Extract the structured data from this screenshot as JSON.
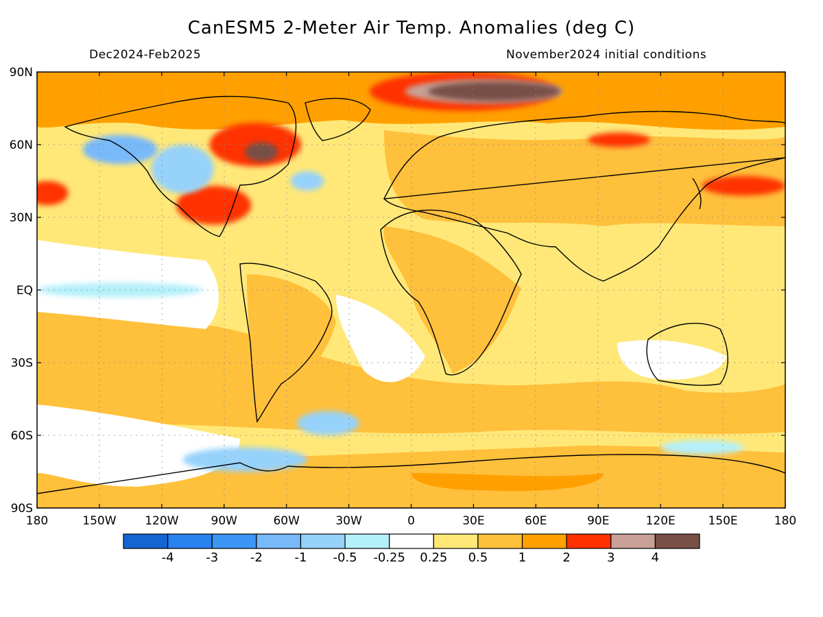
{
  "title": "CanESM5 2-Meter Air Temp. Anomalies (deg C)",
  "subtitle_left": "Dec2024-Feb2025",
  "subtitle_right": "November2024 initial conditions",
  "lat_labels": [
    "90N",
    "60N",
    "30N",
    "EQ",
    "30S",
    "60S",
    "90S"
  ],
  "lon_labels": [
    "180",
    "150W",
    "120W",
    "90W",
    "60W",
    "30W",
    "0",
    "30E",
    "60E",
    "90E",
    "120E",
    "150E",
    "180"
  ],
  "legend": {
    "colors": [
      "#1464d2",
      "#2882f0",
      "#3c96f5",
      "#78b9fa",
      "#96d2fa",
      "#b4f0fa",
      "#ffffff",
      "#ffe878",
      "#ffc03c",
      "#ffa000",
      "#ff3200",
      "#c8a096",
      "#785046"
    ],
    "labels": [
      "-4",
      "-3",
      "-2",
      "-1",
      "-0.5",
      "-0.25",
      "0.25",
      "0.5",
      "1",
      "2",
      "3",
      "4"
    ]
  },
  "chart_data": {
    "type": "heatmap",
    "title": "CanESM5 2-Meter Air Temp. Anomalies (deg C)",
    "subtitle": "Dec2024-Feb2025",
    "initial_conditions": "November2024 initial conditions",
    "xlabel": "",
    "ylabel": "",
    "xlim": [
      -180,
      180
    ],
    "ylim": [
      -90,
      90
    ],
    "grid": true,
    "legend_position": "bottom",
    "contour_levels": [
      -4,
      -3,
      -2,
      -1,
      -0.5,
      -0.25,
      0.25,
      0.5,
      1,
      2,
      3,
      4
    ],
    "regions": [
      {
        "lon": -75,
        "lat": 60,
        "rx": 22,
        "ry": 9,
        "value": 2.5
      },
      {
        "lon": -72,
        "lat": 57,
        "rx": 8,
        "ry": 4,
        "value": 4.5
      },
      {
        "lon": -95,
        "lat": 35,
        "rx": 18,
        "ry": 8,
        "value": 2.5
      },
      {
        "lon": -175,
        "lat": 40,
        "rx": 10,
        "ry": 5,
        "value": 2.5
      },
      {
        "lon": 25,
        "lat": 82,
        "rx": 45,
        "ry": 8,
        "value": 2.5
      },
      {
        "lon": 35,
        "lat": 82,
        "rx": 38,
        "ry": 5,
        "value": 3.5
      },
      {
        "lon": 40,
        "lat": 82,
        "rx": 32,
        "ry": 4,
        "value": 4.5
      },
      {
        "lon": 100,
        "lat": 62,
        "rx": 15,
        "ry": 3,
        "value": 2.5
      },
      {
        "lon": 160,
        "lat": 43,
        "rx": 20,
        "ry": 4,
        "value": 2.5
      },
      {
        "lon": -140,
        "lat": 58,
        "rx": 18,
        "ry": 6,
        "value": -1.5
      },
      {
        "lon": -110,
        "lat": 50,
        "rx": 15,
        "ry": 10,
        "value": -0.6
      },
      {
        "lon": -50,
        "lat": 45,
        "rx": 8,
        "ry": 4,
        "value": -0.6
      },
      {
        "lon": -140,
        "lat": 0,
        "rx": 40,
        "ry": 3,
        "value": -0.4
      },
      {
        "lon": -80,
        "lat": -70,
        "rx": 30,
        "ry": 5,
        "value": -0.6
      },
      {
        "lon": -40,
        "lat": -55,
        "rx": 15,
        "ry": 5,
        "value": -0.6
      },
      {
        "lon": 140,
        "lat": -65,
        "rx": 20,
        "ry": 3,
        "value": -0.4
      }
    ]
  }
}
